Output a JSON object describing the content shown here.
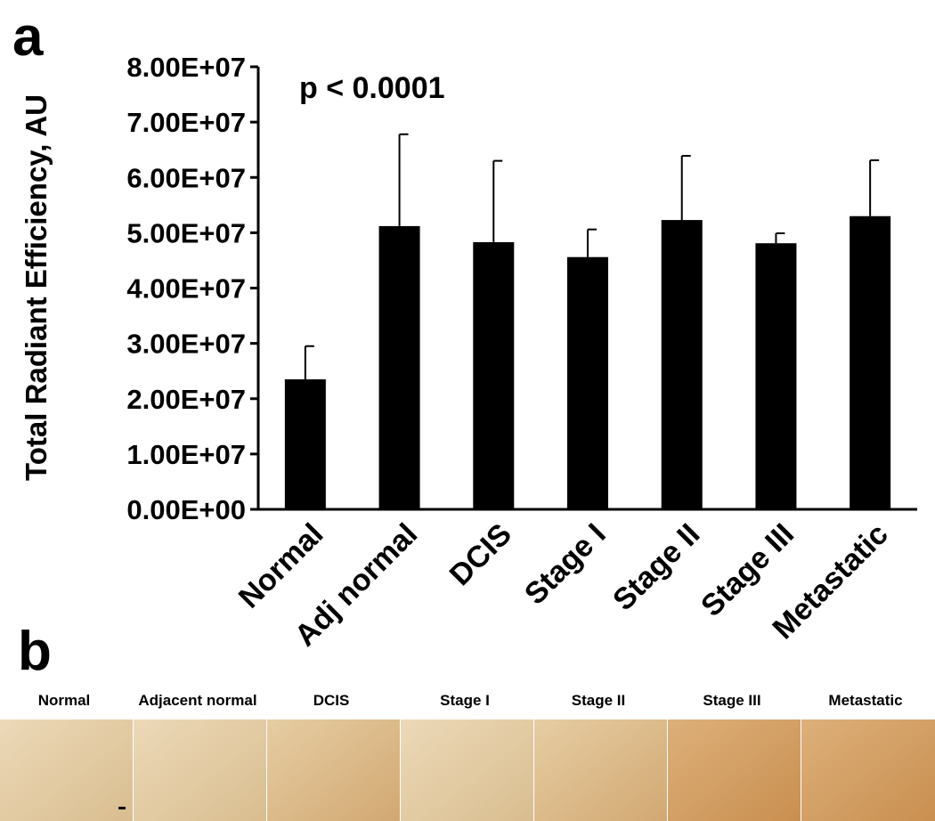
{
  "panel_labels": [
    "a",
    "b"
  ],
  "chart_data": {
    "type": "bar",
    "ylabel": "Total Radiant Efficiency, AU",
    "annotation": "p < 0.0001",
    "categories": [
      "Normal",
      "Adj normal",
      "DCIS",
      "Stage I",
      "Stage II",
      "Stage III",
      "Metastatic"
    ],
    "values": [
      23500000,
      51200000,
      48300000,
      45600000,
      52300000,
      48100000,
      53000000
    ],
    "errors": [
      6000000,
      16600000,
      14700000,
      5000000,
      11600000,
      1800000,
      10100000
    ],
    "color": "#000000",
    "ylim": [
      0,
      80000000
    ],
    "yticks": [
      {
        "value": 0,
        "label": "0.00E+00"
      },
      {
        "value": 10000000,
        "label": "1.00E+07"
      },
      {
        "value": 20000000,
        "label": "2.00E+07"
      },
      {
        "value": 30000000,
        "label": "3.00E+07"
      },
      {
        "value": 40000000,
        "label": "4.00E+07"
      },
      {
        "value": 50000000,
        "label": "5.00E+07"
      },
      {
        "value": 60000000,
        "label": "6.00E+07"
      },
      {
        "value": 70000000,
        "label": "7.00E+07"
      },
      {
        "value": 80000000,
        "label": "8.00E+07"
      }
    ],
    "grid": false
  },
  "image_labels": [
    "Normal",
    "Adjacent normal",
    "DCIS",
    "Stage I",
    "Stage II",
    "Stage III",
    "Metastatic"
  ]
}
